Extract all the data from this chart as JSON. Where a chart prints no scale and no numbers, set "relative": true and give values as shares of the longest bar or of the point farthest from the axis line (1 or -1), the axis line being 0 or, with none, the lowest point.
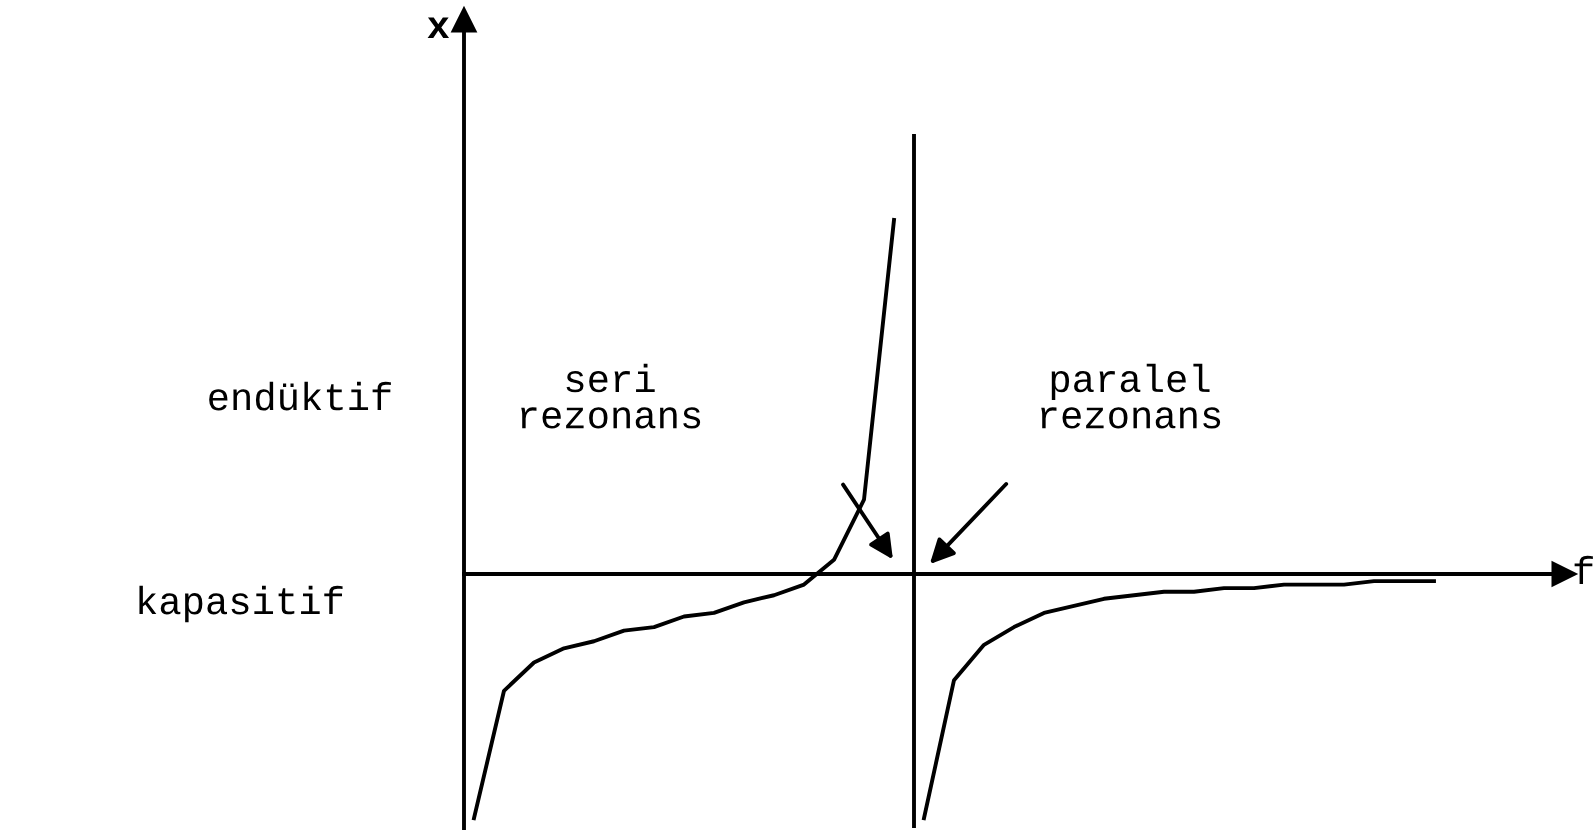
{
  "chart_data": {
    "type": "line",
    "relative": true,
    "xlabel": "f",
    "ylabel": "x",
    "categories": [
      null,
      null,
      null,
      null,
      null,
      null,
      null,
      null,
      null,
      null,
      null,
      null,
      null,
      null,
      null,
      null,
      null,
      null,
      null,
      null,
      null,
      null,
      null,
      null,
      null,
      null,
      null,
      null,
      null,
      null,
      null,
      null,
      null,
      null,
      null,
      null,
      null,
      null
    ],
    "series": [
      {
        "color": "#000000",
        "values": [
          -0.69,
          -0.33,
          -0.25,
          -0.21,
          -0.19,
          -0.16,
          -0.15,
          -0.12,
          -0.11,
          -0.08,
          -0.06,
          -0.03,
          0.04,
          0.21,
          1,
          null,
          null,
          null,
          null,
          null,
          null,
          null,
          null,
          null,
          null,
          null,
          null,
          null,
          null,
          null,
          null,
          null,
          null,
          null,
          null,
          null,
          null,
          null
        ]
      },
      {
        "color": "#000000",
        "values": [
          null,
          null,
          null,
          null,
          null,
          null,
          null,
          null,
          null,
          null,
          null,
          null,
          null,
          null,
          null,
          -0.69,
          -0.3,
          -0.2,
          -0.15,
          -0.11,
          -0.09,
          -0.07,
          -0.06,
          -0.05,
          -0.05,
          -0.04,
          -0.04,
          -0.03,
          -0.03,
          -0.03,
          -0.02,
          -0.02,
          -0.02,
          null,
          null,
          null,
          null,
          null
        ]
      }
    ],
    "annotations": [
      "endüktif",
      "kapasitif",
      "seri\nrezonans",
      "paralel\nrezonans"
    ],
    "marker": "none",
    "line_style": "solid"
  }
}
